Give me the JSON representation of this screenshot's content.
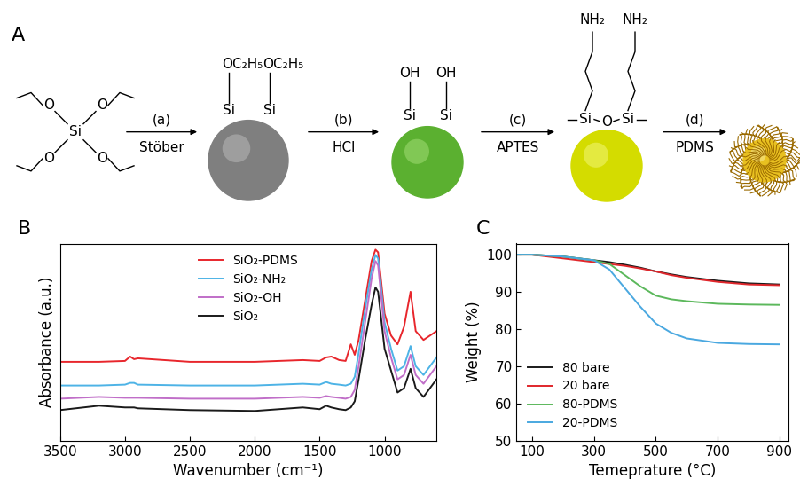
{
  "scheme": {
    "label": "A",
    "steps": [
      {
        "step": "(a)",
        "reagent": "Stöber"
      },
      {
        "step": "(b)",
        "reagent": "HCl"
      },
      {
        "step": "(c)",
        "reagent": "APTES"
      },
      {
        "step": "(d)",
        "reagent": "PDMS"
      }
    ],
    "atoms": {
      "silicon": "Si",
      "oxygen": "O",
      "ethoxy": "OC₂H₅",
      "hydroxyl": "OH",
      "amine": "NH₂"
    }
  },
  "chart_data": [
    {
      "label": "B",
      "type": "line",
      "x_label": "Wavenumber (cm⁻¹)",
      "y_label": "Absorbance (a.u.)",
      "x": [
        3500,
        3200,
        3000,
        2960,
        2930,
        2900,
        2500,
        2000,
        1630,
        1500,
        1450,
        1410,
        1350,
        1300,
        1260,
        1230,
        1200,
        1150,
        1100,
        1070,
        1050,
        1000,
        950,
        900,
        850,
        800,
        760,
        700,
        650,
        600
      ],
      "series": [
        {
          "name": "SiO₂-PDMS",
          "color": "#e8262c",
          "values": [
            9.0,
            9.0,
            9.1,
            9.6,
            9.3,
            9.4,
            9.0,
            9.0,
            9.2,
            9.1,
            9.5,
            9.6,
            9.2,
            9.1,
            11.0,
            9.8,
            11.5,
            16.0,
            20.5,
            21.8,
            21.5,
            14.5,
            12.0,
            11.0,
            13.0,
            17.0,
            12.5,
            11.5,
            12.0,
            12.5
          ]
        },
        {
          "name": "SiO₂-NH₂",
          "color": "#4db3e6",
          "values": [
            6.3,
            6.3,
            6.4,
            6.6,
            6.6,
            6.4,
            6.3,
            6.3,
            6.5,
            6.4,
            6.7,
            6.5,
            6.4,
            6.3,
            6.5,
            7.3,
            10.0,
            15.0,
            19.5,
            21.2,
            20.8,
            13.5,
            10.5,
            8.0,
            8.5,
            10.8,
            8.5,
            7.5,
            8.5,
            9.5
          ]
        },
        {
          "name": "SiO₂-OH",
          "color": "#c06ec8",
          "values": [
            4.8,
            5.0,
            4.9,
            4.9,
            4.9,
            4.9,
            4.8,
            4.8,
            5.0,
            4.9,
            5.1,
            5.0,
            4.9,
            4.8,
            5.0,
            5.8,
            8.5,
            13.5,
            18.5,
            20.5,
            20.0,
            12.5,
            9.5,
            7.0,
            7.5,
            9.8,
            7.5,
            6.5,
            7.5,
            8.5
          ]
        },
        {
          "name": "SiO₂",
          "color": "#1a1a1a",
          "values": [
            3.5,
            4.0,
            3.8,
            3.8,
            3.8,
            3.7,
            3.5,
            3.4,
            3.8,
            3.6,
            4.0,
            3.8,
            3.6,
            3.5,
            3.8,
            4.5,
            7.0,
            11.5,
            15.5,
            17.5,
            17.0,
            10.5,
            8.0,
            5.5,
            6.0,
            8.2,
            6.0,
            5.0,
            6.0,
            7.0
          ]
        }
      ],
      "xlim": [
        3500,
        600
      ],
      "xticks": [
        3500,
        3000,
        2500,
        2000,
        1500,
        1000
      ],
      "ylim": [
        0,
        22.5
      ],
      "tick_labels": "x",
      "legend": "upper center"
    },
    {
      "label": "C",
      "type": "line",
      "x_label": "Temeprature (°C)",
      "y_label": "Weight (%)",
      "x": [
        50,
        100,
        200,
        300,
        350,
        400,
        450,
        500,
        550,
        600,
        700,
        800,
        900
      ],
      "series": [
        {
          "name": "80 bare",
          "color": "#1a1a1a",
          "values": [
            100,
            100,
            99.5,
            98.5,
            98,
            97.3,
            96.5,
            95.5,
            94.7,
            94,
            93,
            92.3,
            92
          ]
        },
        {
          "name": "20 bare",
          "color": "#e0262b",
          "values": [
            100,
            100,
            99,
            98,
            97.5,
            97,
            96.3,
            95.5,
            94.5,
            93.8,
            92.7,
            92,
            91.8
          ]
        },
        {
          "name": "80-PDMS",
          "color": "#5cb85c",
          "values": [
            100,
            100,
            99.5,
            98.5,
            97.5,
            94.5,
            91.5,
            89,
            88,
            87.5,
            86.8,
            86.6,
            86.5
          ]
        },
        {
          "name": "20-PDMS",
          "color": "#4aa8e0",
          "values": [
            100,
            100,
            99.5,
            98.5,
            96,
            91,
            86,
            81.5,
            79,
            77.5,
            76.3,
            76,
            75.9
          ]
        }
      ],
      "xlim": [
        50,
        930
      ],
      "xticks": [
        100,
        300,
        500,
        700,
        900
      ],
      "ylim": [
        50,
        103
      ],
      "yticks": [
        50,
        60,
        70,
        80,
        90,
        100
      ],
      "legend": "lower left"
    }
  ]
}
